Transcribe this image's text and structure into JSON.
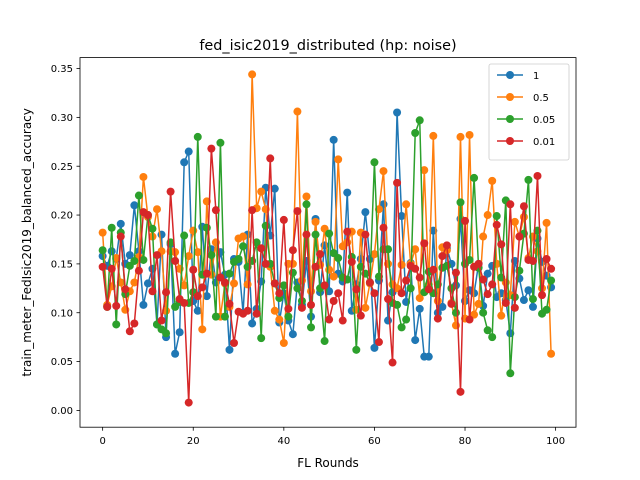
{
  "chart_data": {
    "type": "line",
    "title": "fed_isic2019_distributed (hp: noise)",
    "xlabel": "FL Rounds",
    "ylabel": "train_meter_FedIsic2019_balanced_accuracy",
    "xlim": [
      -5,
      104.5
    ],
    "ylim": [
      -0.0172,
      0.3612
    ],
    "xticks": [
      0,
      20,
      40,
      60,
      80,
      100
    ],
    "xtick_labels": [
      "0",
      "20",
      "40",
      "60",
      "80",
      "100"
    ],
    "yticks": [
      0.0,
      0.05,
      0.1,
      0.15,
      0.2,
      0.25,
      0.3,
      0.35
    ],
    "ytick_labels": [
      "0.00",
      "0.05",
      "0.10",
      "0.15",
      "0.20",
      "0.25",
      "0.30",
      "0.35"
    ],
    "grid": false,
    "legend": "top-right",
    "x": [
      0,
      1,
      2,
      3,
      4,
      5,
      6,
      7,
      8,
      9,
      10,
      11,
      12,
      13,
      14,
      15,
      16,
      17,
      18,
      19,
      20,
      21,
      22,
      23,
      24,
      25,
      26,
      27,
      28,
      29,
      30,
      31,
      32,
      33,
      34,
      35,
      36,
      37,
      38,
      39,
      40,
      41,
      42,
      43,
      44,
      45,
      46,
      47,
      48,
      49,
      50,
      51,
      52,
      53,
      54,
      55,
      56,
      57,
      58,
      59,
      60,
      61,
      62,
      63,
      64,
      65,
      66,
      67,
      68,
      69,
      70,
      71,
      72,
      73,
      74,
      75,
      76,
      77,
      78,
      79,
      80,
      81,
      82,
      83,
      84,
      85,
      86,
      87,
      88,
      89,
      90,
      91,
      92,
      93,
      94,
      95,
      96,
      97,
      98,
      99
    ],
    "series": [
      {
        "name": "1",
        "color": "#1f77b4",
        "values": [
          0.158,
          0.148,
          0.163,
          0.155,
          0.191,
          0.15,
          0.159,
          0.21,
          0.163,
          0.108,
          0.13,
          0.145,
          0.088,
          0.18,
          0.075,
          0.17,
          0.058,
          0.08,
          0.254,
          0.265,
          0.112,
          0.102,
          0.188,
          0.117,
          0.165,
          0.131,
          0.162,
          0.139,
          0.062,
          0.155,
          0.152,
          0.1,
          0.18,
          0.089,
          0.104,
          0.132,
          0.228,
          0.179,
          0.227,
          0.09,
          0.12,
          0.092,
          0.078,
          0.131,
          0.108,
          0.153,
          0.096,
          0.196,
          0.121,
          0.169,
          0.122,
          0.277,
          0.14,
          0.132,
          0.223,
          0.102,
          0.129,
          0.155,
          0.203,
          0.155,
          0.064,
          0.133,
          0.211,
          0.092,
          0.121,
          0.305,
          0.199,
          0.111,
          0.151,
          0.072,
          0.104,
          0.055,
          0.055,
          0.184,
          0.1,
          0.106,
          0.166,
          0.15,
          0.128,
          0.196,
          0.112,
          0.123,
          0.12,
          0.15,
          0.107,
          0.14,
          0.148,
          0.116,
          0.12,
          0.113,
          0.079,
          0.153,
          0.135,
          0.113,
          0.123,
          0.106,
          0.176,
          0.152,
          0.138,
          0.126
        ]
      },
      {
        "name": "0.5",
        "color": "#ff7f0e",
        "values": [
          0.182,
          0.108,
          0.127,
          0.156,
          0.131,
          0.103,
          0.122,
          0.131,
          0.157,
          0.239,
          0.198,
          0.178,
          0.206,
          0.163,
          0.102,
          0.163,
          0.162,
          0.145,
          0.128,
          0.158,
          0.184,
          0.162,
          0.083,
          0.214,
          0.139,
          0.172,
          0.096,
          0.13,
          0.106,
          0.13,
          0.176,
          0.178,
          0.129,
          0.344,
          0.207,
          0.224,
          0.206,
          0.147,
          0.102,
          0.093,
          0.069,
          0.15,
          0.15,
          0.306,
          0.133,
          0.219,
          0.122,
          0.193,
          0.149,
          0.186,
          0.144,
          0.137,
          0.257,
          0.168,
          0.172,
          0.183,
          0.103,
          0.182,
          0.105,
          0.13,
          0.16,
          0.206,
          0.245,
          0.15,
          0.129,
          0.125,
          0.149,
          0.211,
          0.15,
          0.165,
          0.115,
          0.246,
          0.129,
          0.281,
          0.112,
          0.167,
          0.164,
          0.11,
          0.087,
          0.28,
          0.094,
          0.282,
          0.098,
          0.109,
          0.178,
          0.2,
          0.235,
          0.15,
          0.097,
          0.131,
          0.118,
          0.193,
          0.178,
          0.198,
          0.156,
          0.178,
          0.163,
          0.125,
          0.192,
          0.058
        ]
      },
      {
        "name": "0.05",
        "color": "#2ca02c",
        "values": [
          0.164,
          0.106,
          0.187,
          0.088,
          0.182,
          0.119,
          0.148,
          0.153,
          0.22,
          0.154,
          0.2,
          0.186,
          0.088,
          0.083,
          0.079,
          0.172,
          0.106,
          0.111,
          0.179,
          0.11,
          0.121,
          0.28,
          0.139,
          0.187,
          0.159,
          0.096,
          0.274,
          0.096,
          0.14,
          0.152,
          0.155,
          0.168,
          0.147,
          0.153,
          0.172,
          0.074,
          0.189,
          0.15,
          0.13,
          0.115,
          0.128,
          0.096,
          0.141,
          0.125,
          0.112,
          0.211,
          0.085,
          0.18,
          0.125,
          0.071,
          0.181,
          0.161,
          0.156,
          0.136,
          0.134,
          0.157,
          0.062,
          0.147,
          0.14,
          0.131,
          0.254,
          0.137,
          0.165,
          0.165,
          0.11,
          0.108,
          0.085,
          0.093,
          0.125,
          0.284,
          0.297,
          0.121,
          0.142,
          0.12,
          0.129,
          0.146,
          0.148,
          0.125,
          0.1,
          0.213,
          0.15,
          0.154,
          0.238,
          0.146,
          0.1,
          0.082,
          0.075,
          0.199,
          0.136,
          0.215,
          0.038,
          0.116,
          0.143,
          0.181,
          0.236,
          0.114,
          0.184,
          0.099,
          0.103,
          0.133
        ]
      },
      {
        "name": "0.01",
        "color": "#d62728",
        "values": [
          0.147,
          0.106,
          0.145,
          0.107,
          0.178,
          0.124,
          0.081,
          0.089,
          0.143,
          0.203,
          0.2,
          0.122,
          0.159,
          0.092,
          0.121,
          0.224,
          0.153,
          0.114,
          0.11,
          0.008,
          0.144,
          0.117,
          0.126,
          0.14,
          0.268,
          0.205,
          0.136,
          0.131,
          0.109,
          0.069,
          0.101,
          0.099,
          0.102,
          0.205,
          0.099,
          0.166,
          0.15,
          0.258,
          0.13,
          0.12,
          0.195,
          0.104,
          0.164,
          0.204,
          0.105,
          0.18,
          0.108,
          0.147,
          0.16,
          0.128,
          0.093,
          0.112,
          0.12,
          0.092,
          0.183,
          0.152,
          0.124,
          0.097,
          0.18,
          0.131,
          0.12,
          0.07,
          0.187,
          0.114,
          0.049,
          0.233,
          0.12,
          0.133,
          0.148,
          0.145,
          0.136,
          0.171,
          0.124,
          0.144,
          0.094,
          0.158,
          0.169,
          0.109,
          0.141,
          0.019,
          0.194,
          0.093,
          0.147,
          0.15,
          0.134,
          0.119,
          0.129,
          0.19,
          0.17,
          0.11,
          0.211,
          0.105,
          0.178,
          0.209,
          0.154,
          0.153,
          0.24,
          0.118,
          0.155,
          0.145
        ]
      }
    ]
  }
}
